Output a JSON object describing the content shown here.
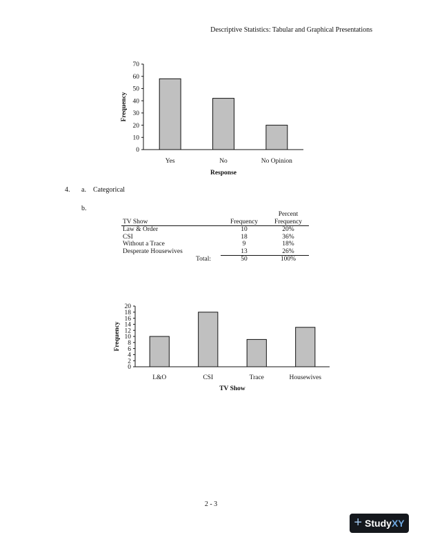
{
  "header": {
    "running_title": "Descriptive Statistics: Tabular and Graphical Presentations"
  },
  "question": {
    "number": "4.",
    "part_a": {
      "label": "a.",
      "answer": "Categorical"
    },
    "part_b": {
      "label": "b."
    }
  },
  "table": {
    "headers": {
      "show": "TV Show",
      "frequency": "Frequency",
      "percent_line1": "Percent",
      "percent_line2": "Frequency"
    },
    "rows": [
      {
        "show": "Law & Order",
        "frequency": "10",
        "percent": "20%"
      },
      {
        "show": "CSI",
        "frequency": "18",
        "percent": "36%"
      },
      {
        "show": "Without a Trace",
        "frequency": "9",
        "percent": "18%"
      },
      {
        "show": "Desperate Housewives",
        "frequency": "13",
        "percent": "26%"
      }
    ],
    "total": {
      "label": "Total:",
      "frequency": "50",
      "percent": "100%"
    }
  },
  "chart_data": [
    {
      "type": "bar",
      "categories": [
        "Yes",
        "No",
        "No Opinion"
      ],
      "values": [
        58,
        42,
        20
      ],
      "xlabel": "Response",
      "ylabel": "Frequency",
      "ylim": [
        0,
        70
      ],
      "yticks": [
        0,
        10,
        20,
        30,
        40,
        50,
        60,
        70
      ],
      "grid": false,
      "bar_color": "#c0c0c0"
    },
    {
      "type": "bar",
      "categories": [
        "L&O",
        "CSI",
        "Trace",
        "Housewives"
      ],
      "values": [
        10,
        18,
        9,
        13
      ],
      "xlabel": "TV Show",
      "ylabel": "Frequency",
      "ylim": [
        0,
        20
      ],
      "yticks": [
        0,
        2,
        4,
        6,
        8,
        10,
        12,
        14,
        16,
        18,
        20
      ],
      "grid": false,
      "bar_color": "#c0c0c0"
    }
  ],
  "footer": {
    "page_number": "2 - 3",
    "badge_prefix": "Study",
    "badge_suffix": "XY"
  }
}
